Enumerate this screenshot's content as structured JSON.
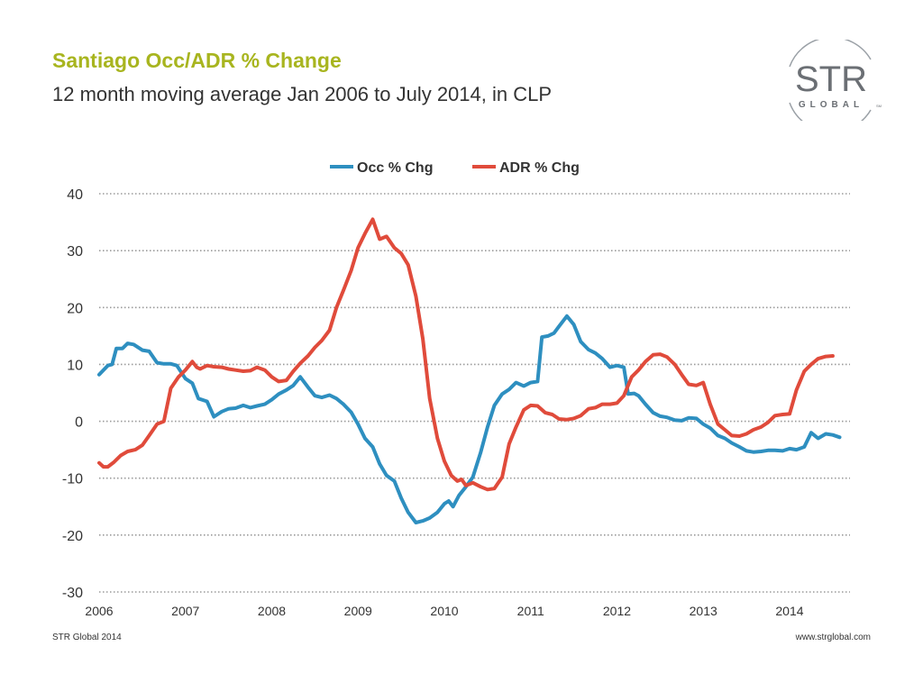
{
  "header": {
    "title": "Santiago Occ/ADR % Change",
    "subtitle": "12 month moving average Jan 2006 to July 2014, in CLP"
  },
  "logo": {
    "main": "STR",
    "sub": "GLOBAL",
    "mark": "SM"
  },
  "footer": {
    "left": "STR Global 2014",
    "right": "www.strglobal.com"
  },
  "colors": {
    "occ": "#2e8fc0",
    "adr": "#e04b3b",
    "title": "#a8b51f",
    "grid": "#9a9a9a"
  },
  "chart_data": {
    "type": "line",
    "title": "",
    "xlabel": "",
    "ylabel": "",
    "ylim": [
      -30,
      40
    ],
    "yticks": [
      40,
      30,
      20,
      10,
      0,
      -10,
      -20,
      -30
    ],
    "xlim": [
      2006,
      2014.7
    ],
    "xticks": [
      "2006",
      "2007",
      "2008",
      "2009",
      "2010",
      "2011",
      "2012",
      "2013",
      "2014"
    ],
    "grid": true,
    "legend": "top-center",
    "series": [
      {
        "name": "Occ % Chg",
        "color": "#2e8fc0",
        "points": [
          [
            2006.0,
            8.2
          ],
          [
            2006.1,
            9.8
          ],
          [
            2006.15,
            10.0
          ],
          [
            2006.2,
            12.8
          ],
          [
            2006.27,
            12.8
          ],
          [
            2006.33,
            13.7
          ],
          [
            2006.4,
            13.5
          ],
          [
            2006.5,
            12.5
          ],
          [
            2006.58,
            12.3
          ],
          [
            2006.67,
            10.3
          ],
          [
            2006.75,
            10.1
          ],
          [
            2006.83,
            10.1
          ],
          [
            2006.9,
            9.8
          ],
          [
            2007.0,
            7.5
          ],
          [
            2007.08,
            6.7
          ],
          [
            2007.15,
            4.0
          ],
          [
            2007.25,
            3.5
          ],
          [
            2007.33,
            0.8
          ],
          [
            2007.42,
            1.7
          ],
          [
            2007.5,
            2.2
          ],
          [
            2007.58,
            2.3
          ],
          [
            2007.67,
            2.8
          ],
          [
            2007.75,
            2.4
          ],
          [
            2007.83,
            2.7
          ],
          [
            2007.92,
            3.0
          ],
          [
            2008.0,
            3.8
          ],
          [
            2008.08,
            4.8
          ],
          [
            2008.17,
            5.5
          ],
          [
            2008.25,
            6.3
          ],
          [
            2008.33,
            7.8
          ],
          [
            2008.42,
            6.0
          ],
          [
            2008.5,
            4.5
          ],
          [
            2008.58,
            4.2
          ],
          [
            2008.67,
            4.6
          ],
          [
            2008.75,
            4.0
          ],
          [
            2008.83,
            3.0
          ],
          [
            2008.92,
            1.6
          ],
          [
            2009.0,
            -0.5
          ],
          [
            2009.08,
            -3.0
          ],
          [
            2009.17,
            -4.5
          ],
          [
            2009.25,
            -7.5
          ],
          [
            2009.33,
            -9.5
          ],
          [
            2009.42,
            -10.5
          ],
          [
            2009.5,
            -13.5
          ],
          [
            2009.58,
            -16.0
          ],
          [
            2009.67,
            -17.8
          ],
          [
            2009.75,
            -17.5
          ],
          [
            2009.83,
            -17.0
          ],
          [
            2009.92,
            -16.0
          ],
          [
            2010.0,
            -14.5
          ],
          [
            2010.05,
            -14.0
          ],
          [
            2010.1,
            -15.0
          ],
          [
            2010.17,
            -13.0
          ],
          [
            2010.25,
            -11.5
          ],
          [
            2010.33,
            -9.8
          ],
          [
            2010.42,
            -5.5
          ],
          [
            2010.5,
            -1.0
          ],
          [
            2010.58,
            2.8
          ],
          [
            2010.67,
            4.8
          ],
          [
            2010.75,
            5.6
          ],
          [
            2010.83,
            6.8
          ],
          [
            2010.92,
            6.2
          ],
          [
            2011.0,
            6.8
          ],
          [
            2011.08,
            7.0
          ],
          [
            2011.13,
            14.8
          ],
          [
            2011.2,
            15.0
          ],
          [
            2011.27,
            15.5
          ],
          [
            2011.33,
            16.7
          ],
          [
            2011.42,
            18.5
          ],
          [
            2011.5,
            17.0
          ],
          [
            2011.58,
            14.0
          ],
          [
            2011.67,
            12.6
          ],
          [
            2011.75,
            12.0
          ],
          [
            2011.83,
            11.0
          ],
          [
            2011.92,
            9.5
          ],
          [
            2012.0,
            9.8
          ],
          [
            2012.08,
            9.5
          ],
          [
            2012.13,
            4.8
          ],
          [
            2012.2,
            4.9
          ],
          [
            2012.25,
            4.5
          ],
          [
            2012.33,
            3.0
          ],
          [
            2012.42,
            1.5
          ],
          [
            2012.5,
            0.9
          ],
          [
            2012.58,
            0.7
          ],
          [
            2012.67,
            0.2
          ],
          [
            2012.75,
            0.1
          ],
          [
            2012.83,
            0.6
          ],
          [
            2012.92,
            0.5
          ],
          [
            2013.0,
            -0.5
          ],
          [
            2013.08,
            -1.2
          ],
          [
            2013.17,
            -2.5
          ],
          [
            2013.25,
            -3.0
          ],
          [
            2013.33,
            -3.8
          ],
          [
            2013.42,
            -4.5
          ],
          [
            2013.5,
            -5.2
          ],
          [
            2013.58,
            -5.4
          ],
          [
            2013.67,
            -5.3
          ],
          [
            2013.75,
            -5.1
          ],
          [
            2013.83,
            -5.1
          ],
          [
            2013.92,
            -5.2
          ],
          [
            2014.0,
            -4.8
          ],
          [
            2014.08,
            -5.0
          ],
          [
            2014.17,
            -4.5
          ],
          [
            2014.25,
            -2.0
          ],
          [
            2014.33,
            -3.0
          ],
          [
            2014.42,
            -2.2
          ],
          [
            2014.5,
            -2.4
          ],
          [
            2014.58,
            -2.8
          ]
        ]
      },
      {
        "name": "ADR % Chg",
        "color": "#e04b3b",
        "points": [
          [
            2006.0,
            -7.3
          ],
          [
            2006.05,
            -8.0
          ],
          [
            2006.1,
            -8.0
          ],
          [
            2006.17,
            -7.2
          ],
          [
            2006.25,
            -6.0
          ],
          [
            2006.33,
            -5.3
          ],
          [
            2006.42,
            -5.0
          ],
          [
            2006.5,
            -4.2
          ],
          [
            2006.58,
            -2.5
          ],
          [
            2006.67,
            -0.5
          ],
          [
            2006.75,
            0.0
          ],
          [
            2006.83,
            5.8
          ],
          [
            2006.92,
            7.8
          ],
          [
            2007.0,
            9.0
          ],
          [
            2007.08,
            10.5
          ],
          [
            2007.13,
            9.5
          ],
          [
            2007.17,
            9.2
          ],
          [
            2007.25,
            9.8
          ],
          [
            2007.33,
            9.6
          ],
          [
            2007.42,
            9.5
          ],
          [
            2007.5,
            9.2
          ],
          [
            2007.58,
            9.0
          ],
          [
            2007.67,
            8.8
          ],
          [
            2007.75,
            8.9
          ],
          [
            2007.83,
            9.5
          ],
          [
            2007.92,
            9.0
          ],
          [
            2008.0,
            7.8
          ],
          [
            2008.08,
            7.0
          ],
          [
            2008.17,
            7.2
          ],
          [
            2008.25,
            8.8
          ],
          [
            2008.33,
            10.2
          ],
          [
            2008.42,
            11.5
          ],
          [
            2008.5,
            13.0
          ],
          [
            2008.58,
            14.2
          ],
          [
            2008.67,
            16.0
          ],
          [
            2008.75,
            20.0
          ],
          [
            2008.83,
            23.0
          ],
          [
            2008.92,
            26.5
          ],
          [
            2009.0,
            30.5
          ],
          [
            2009.08,
            33.0
          ],
          [
            2009.17,
            35.5
          ],
          [
            2009.25,
            32.0
          ],
          [
            2009.33,
            32.5
          ],
          [
            2009.42,
            30.5
          ],
          [
            2009.5,
            29.5
          ],
          [
            2009.58,
            27.5
          ],
          [
            2009.67,
            22.0
          ],
          [
            2009.75,
            14.5
          ],
          [
            2009.83,
            4.0
          ],
          [
            2009.92,
            -3.0
          ],
          [
            2010.0,
            -7.0
          ],
          [
            2010.08,
            -9.5
          ],
          [
            2010.15,
            -10.5
          ],
          [
            2010.2,
            -10.2
          ],
          [
            2010.25,
            -11.3
          ],
          [
            2010.33,
            -10.8
          ],
          [
            2010.42,
            -11.5
          ],
          [
            2010.5,
            -12.0
          ],
          [
            2010.58,
            -11.8
          ],
          [
            2010.67,
            -9.8
          ],
          [
            2010.75,
            -4.0
          ],
          [
            2010.83,
            -1.0
          ],
          [
            2010.92,
            2.0
          ],
          [
            2011.0,
            2.8
          ],
          [
            2011.08,
            2.7
          ],
          [
            2011.17,
            1.5
          ],
          [
            2011.25,
            1.2
          ],
          [
            2011.33,
            0.4
          ],
          [
            2011.42,
            0.3
          ],
          [
            2011.5,
            0.5
          ],
          [
            2011.58,
            1.0
          ],
          [
            2011.67,
            2.2
          ],
          [
            2011.75,
            2.4
          ],
          [
            2011.83,
            3.0
          ],
          [
            2011.92,
            3.0
          ],
          [
            2012.0,
            3.2
          ],
          [
            2012.08,
            4.5
          ],
          [
            2012.17,
            7.8
          ],
          [
            2012.25,
            9.0
          ],
          [
            2012.33,
            10.5
          ],
          [
            2012.42,
            11.7
          ],
          [
            2012.5,
            11.8
          ],
          [
            2012.58,
            11.3
          ],
          [
            2012.67,
            10.0
          ],
          [
            2012.75,
            8.2
          ],
          [
            2012.83,
            6.5
          ],
          [
            2012.92,
            6.3
          ],
          [
            2013.0,
            6.8
          ],
          [
            2013.08,
            3.0
          ],
          [
            2013.17,
            -0.5
          ],
          [
            2013.25,
            -1.5
          ],
          [
            2013.33,
            -2.5
          ],
          [
            2013.42,
            -2.6
          ],
          [
            2013.5,
            -2.2
          ],
          [
            2013.58,
            -1.5
          ],
          [
            2013.67,
            -1.0
          ],
          [
            2013.75,
            -0.2
          ],
          [
            2013.83,
            1.0
          ],
          [
            2013.92,
            1.2
          ],
          [
            2014.0,
            1.3
          ],
          [
            2014.08,
            5.5
          ],
          [
            2014.17,
            8.8
          ],
          [
            2014.25,
            10.0
          ],
          [
            2014.33,
            11.0
          ],
          [
            2014.42,
            11.4
          ],
          [
            2014.5,
            11.5
          ]
        ]
      }
    ]
  }
}
